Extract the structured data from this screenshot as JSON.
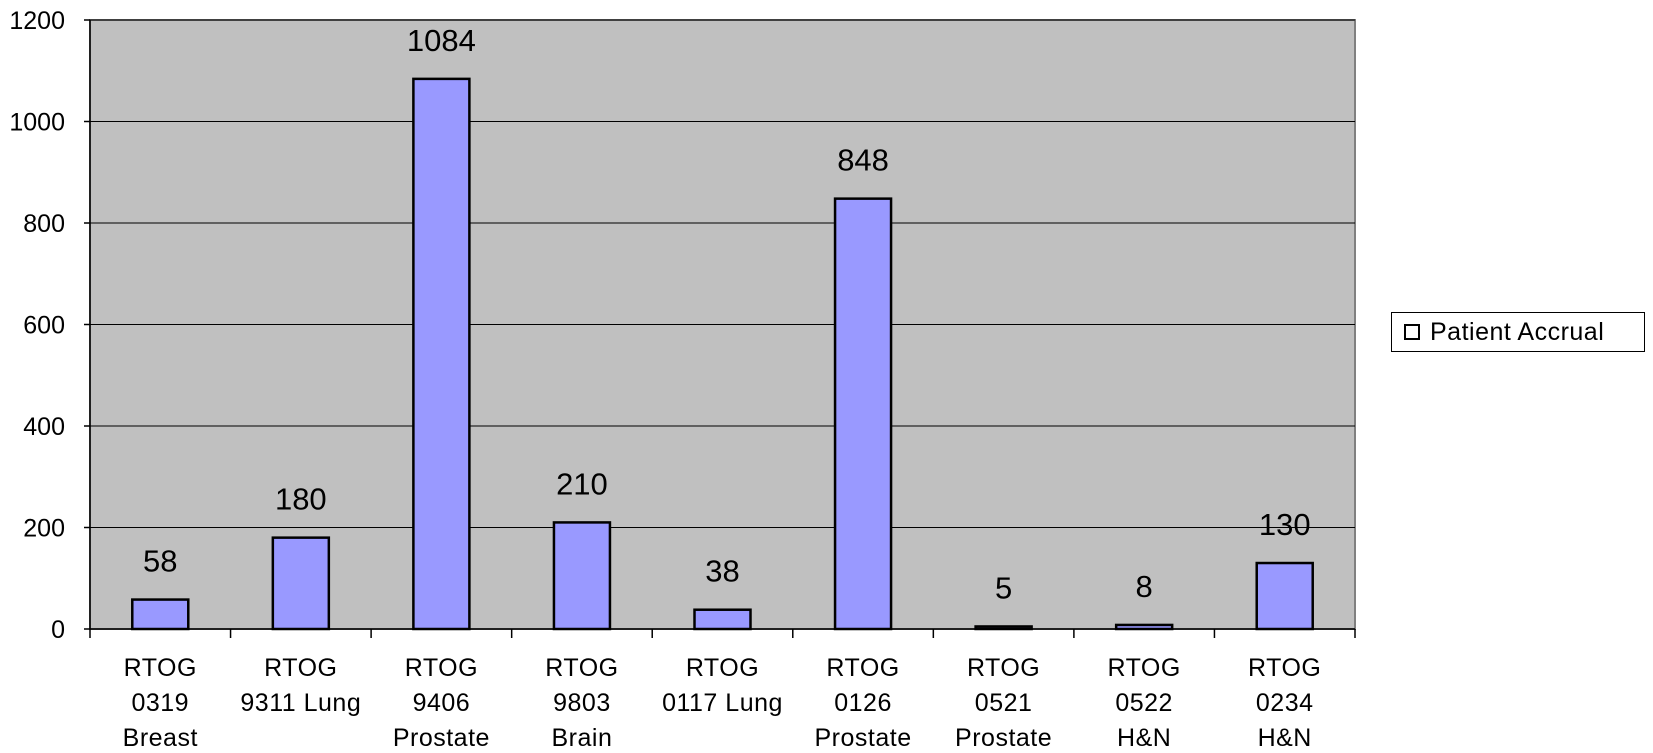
{
  "chart_data": {
    "type": "bar",
    "categories": [
      [
        "RTOG",
        "0319",
        "Breast"
      ],
      [
        "RTOG",
        "9311 Lung"
      ],
      [
        "RTOG",
        "9406",
        "Prostate"
      ],
      [
        "RTOG",
        "9803",
        "Brain"
      ],
      [
        "RTOG",
        "0117 Lung"
      ],
      [
        "RTOG",
        "0126",
        "Prostate"
      ],
      [
        "RTOG",
        "0521",
        "Prostate"
      ],
      [
        "RTOG",
        "0522",
        "H&N"
      ],
      [
        "RTOG",
        "0234",
        "H&N"
      ]
    ],
    "series": [
      {
        "name": "Patient Accrual",
        "values": [
          58,
          180,
          1084,
          210,
          38,
          848,
          5,
          8,
          130
        ]
      }
    ],
    "data_labels": [
      "58",
      "180",
      "1084",
      "210",
      "38",
      "848",
      "5",
      "8",
      "130"
    ],
    "ylim": [
      0,
      1200
    ],
    "yticks": [
      0,
      200,
      400,
      600,
      800,
      1000,
      1200
    ],
    "grid": true,
    "legend": "right",
    "colors": {
      "bar": "#9999ff",
      "plot_bg": "#c0c0c0",
      "axis": "#000000"
    }
  }
}
